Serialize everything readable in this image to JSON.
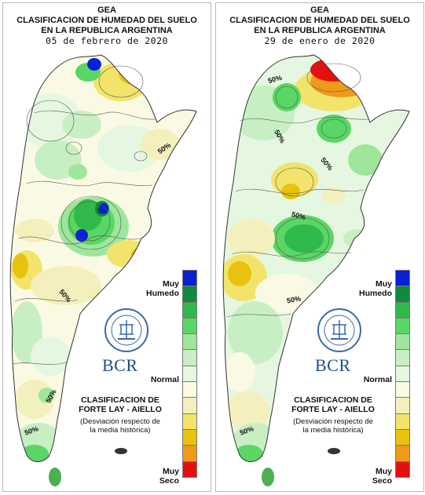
{
  "panels": [
    {
      "org": "GEA",
      "title_line1": "CLASIFICACION DE HUMEDAD DEL SUELO",
      "title_line2": "EN LA REPUBLICA ARGENTINA",
      "date": "05 de febrero de 2020",
      "contour_labels": [
        "50%",
        "50%",
        "50%",
        "50%"
      ]
    },
    {
      "org": "GEA",
      "title_line1": "CLASIFICACION DE HUMEDAD DEL SUELO",
      "title_line2": "EN LA REPUBLICA ARGENTINA",
      "date": "29 de enero de 2020",
      "contour_labels": [
        "50%",
        "50%",
        "50%",
        "50%",
        "50%",
        "50%"
      ]
    }
  ],
  "legend": {
    "top_label_1": "Muy",
    "top_label_2": "Humedo",
    "mid_label": "Normal",
    "bottom_label_1": "Muy",
    "bottom_label_2": "Seco",
    "colors": [
      "#0a1fd6",
      "#0f8a3e",
      "#2fb94b",
      "#5ad665",
      "#9ee69b",
      "#c7efc3",
      "#e6f7e1",
      "#fafae4",
      "#f3f0bd",
      "#f2e46b",
      "#e8c20f",
      "#ef9a1a",
      "#e60f0f"
    ]
  },
  "classification": {
    "line1": "CLASIFICACION DE",
    "line2": "FORTE LAY - AIELLO",
    "note1": "(Desviación respecto de",
    "note2": "la media histórica)"
  },
  "logo": {
    "text": "BCR",
    "seal_text": "BOLSA DE COMERCIO DE ROSARIO"
  }
}
